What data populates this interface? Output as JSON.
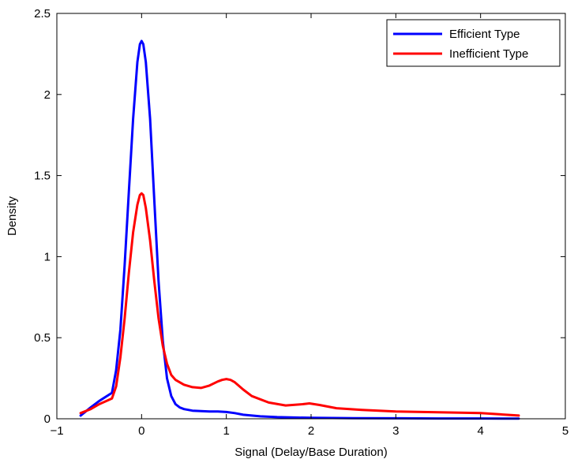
{
  "chart_data": {
    "type": "line",
    "title": "",
    "xlabel": "Signal (Delay/Base Duration)",
    "ylabel": "Density",
    "xlim": [
      -1,
      5
    ],
    "ylim": [
      0,
      2.5
    ],
    "xticks": [
      -1,
      0,
      1,
      2,
      3,
      4,
      5
    ],
    "yticks": [
      0,
      0.5,
      1,
      1.5,
      2,
      2.5
    ],
    "xtick_labels": [
      "−1",
      "0",
      "1",
      "2",
      "3",
      "4",
      "5"
    ],
    "ytick_labels": [
      "0",
      "0.5",
      "1",
      "1.5",
      "2",
      "2.5"
    ],
    "grid": false,
    "legend_position": "top-right",
    "series": [
      {
        "name": "Efficient Type",
        "color": "#0000ff",
        "x": [
          -0.72,
          -0.6,
          -0.5,
          -0.35,
          -0.3,
          -0.25,
          -0.2,
          -0.15,
          -0.1,
          -0.05,
          -0.02,
          0,
          0.02,
          0.05,
          0.1,
          0.15,
          0.2,
          0.25,
          0.3,
          0.35,
          0.4,
          0.45,
          0.5,
          0.6,
          0.7,
          0.8,
          0.9,
          1.0,
          1.1,
          1.2,
          1.4,
          1.6,
          1.8,
          2.0,
          2.5,
          3.0,
          3.5,
          4.0,
          4.45
        ],
        "y": [
          0.02,
          0.07,
          0.11,
          0.16,
          0.3,
          0.55,
          0.95,
          1.4,
          1.85,
          2.2,
          2.31,
          2.33,
          2.31,
          2.2,
          1.85,
          1.35,
          0.85,
          0.48,
          0.25,
          0.14,
          0.09,
          0.07,
          0.06,
          0.05,
          0.047,
          0.045,
          0.045,
          0.042,
          0.035,
          0.025,
          0.015,
          0.01,
          0.008,
          0.006,
          0.004,
          0.003,
          0.002,
          0.002,
          0.001
        ]
      },
      {
        "name": "Inefficient Type",
        "color": "#ff0000",
        "x": [
          -0.72,
          -0.6,
          -0.5,
          -0.35,
          -0.3,
          -0.25,
          -0.2,
          -0.15,
          -0.1,
          -0.05,
          -0.02,
          0,
          0.02,
          0.05,
          0.1,
          0.15,
          0.2,
          0.25,
          0.3,
          0.35,
          0.4,
          0.5,
          0.6,
          0.7,
          0.8,
          0.9,
          0.95,
          1.0,
          1.05,
          1.1,
          1.2,
          1.3,
          1.5,
          1.7,
          1.9,
          1.98,
          2.1,
          2.3,
          2.6,
          3.0,
          3.5,
          4.0,
          4.45
        ],
        "y": [
          0.035,
          0.06,
          0.09,
          0.125,
          0.2,
          0.38,
          0.62,
          0.9,
          1.15,
          1.32,
          1.38,
          1.39,
          1.38,
          1.3,
          1.1,
          0.85,
          0.62,
          0.45,
          0.34,
          0.27,
          0.24,
          0.21,
          0.195,
          0.19,
          0.205,
          0.23,
          0.24,
          0.245,
          0.24,
          0.225,
          0.18,
          0.14,
          0.1,
          0.082,
          0.09,
          0.095,
          0.085,
          0.065,
          0.055,
          0.045,
          0.04,
          0.035,
          0.02
        ]
      }
    ]
  }
}
